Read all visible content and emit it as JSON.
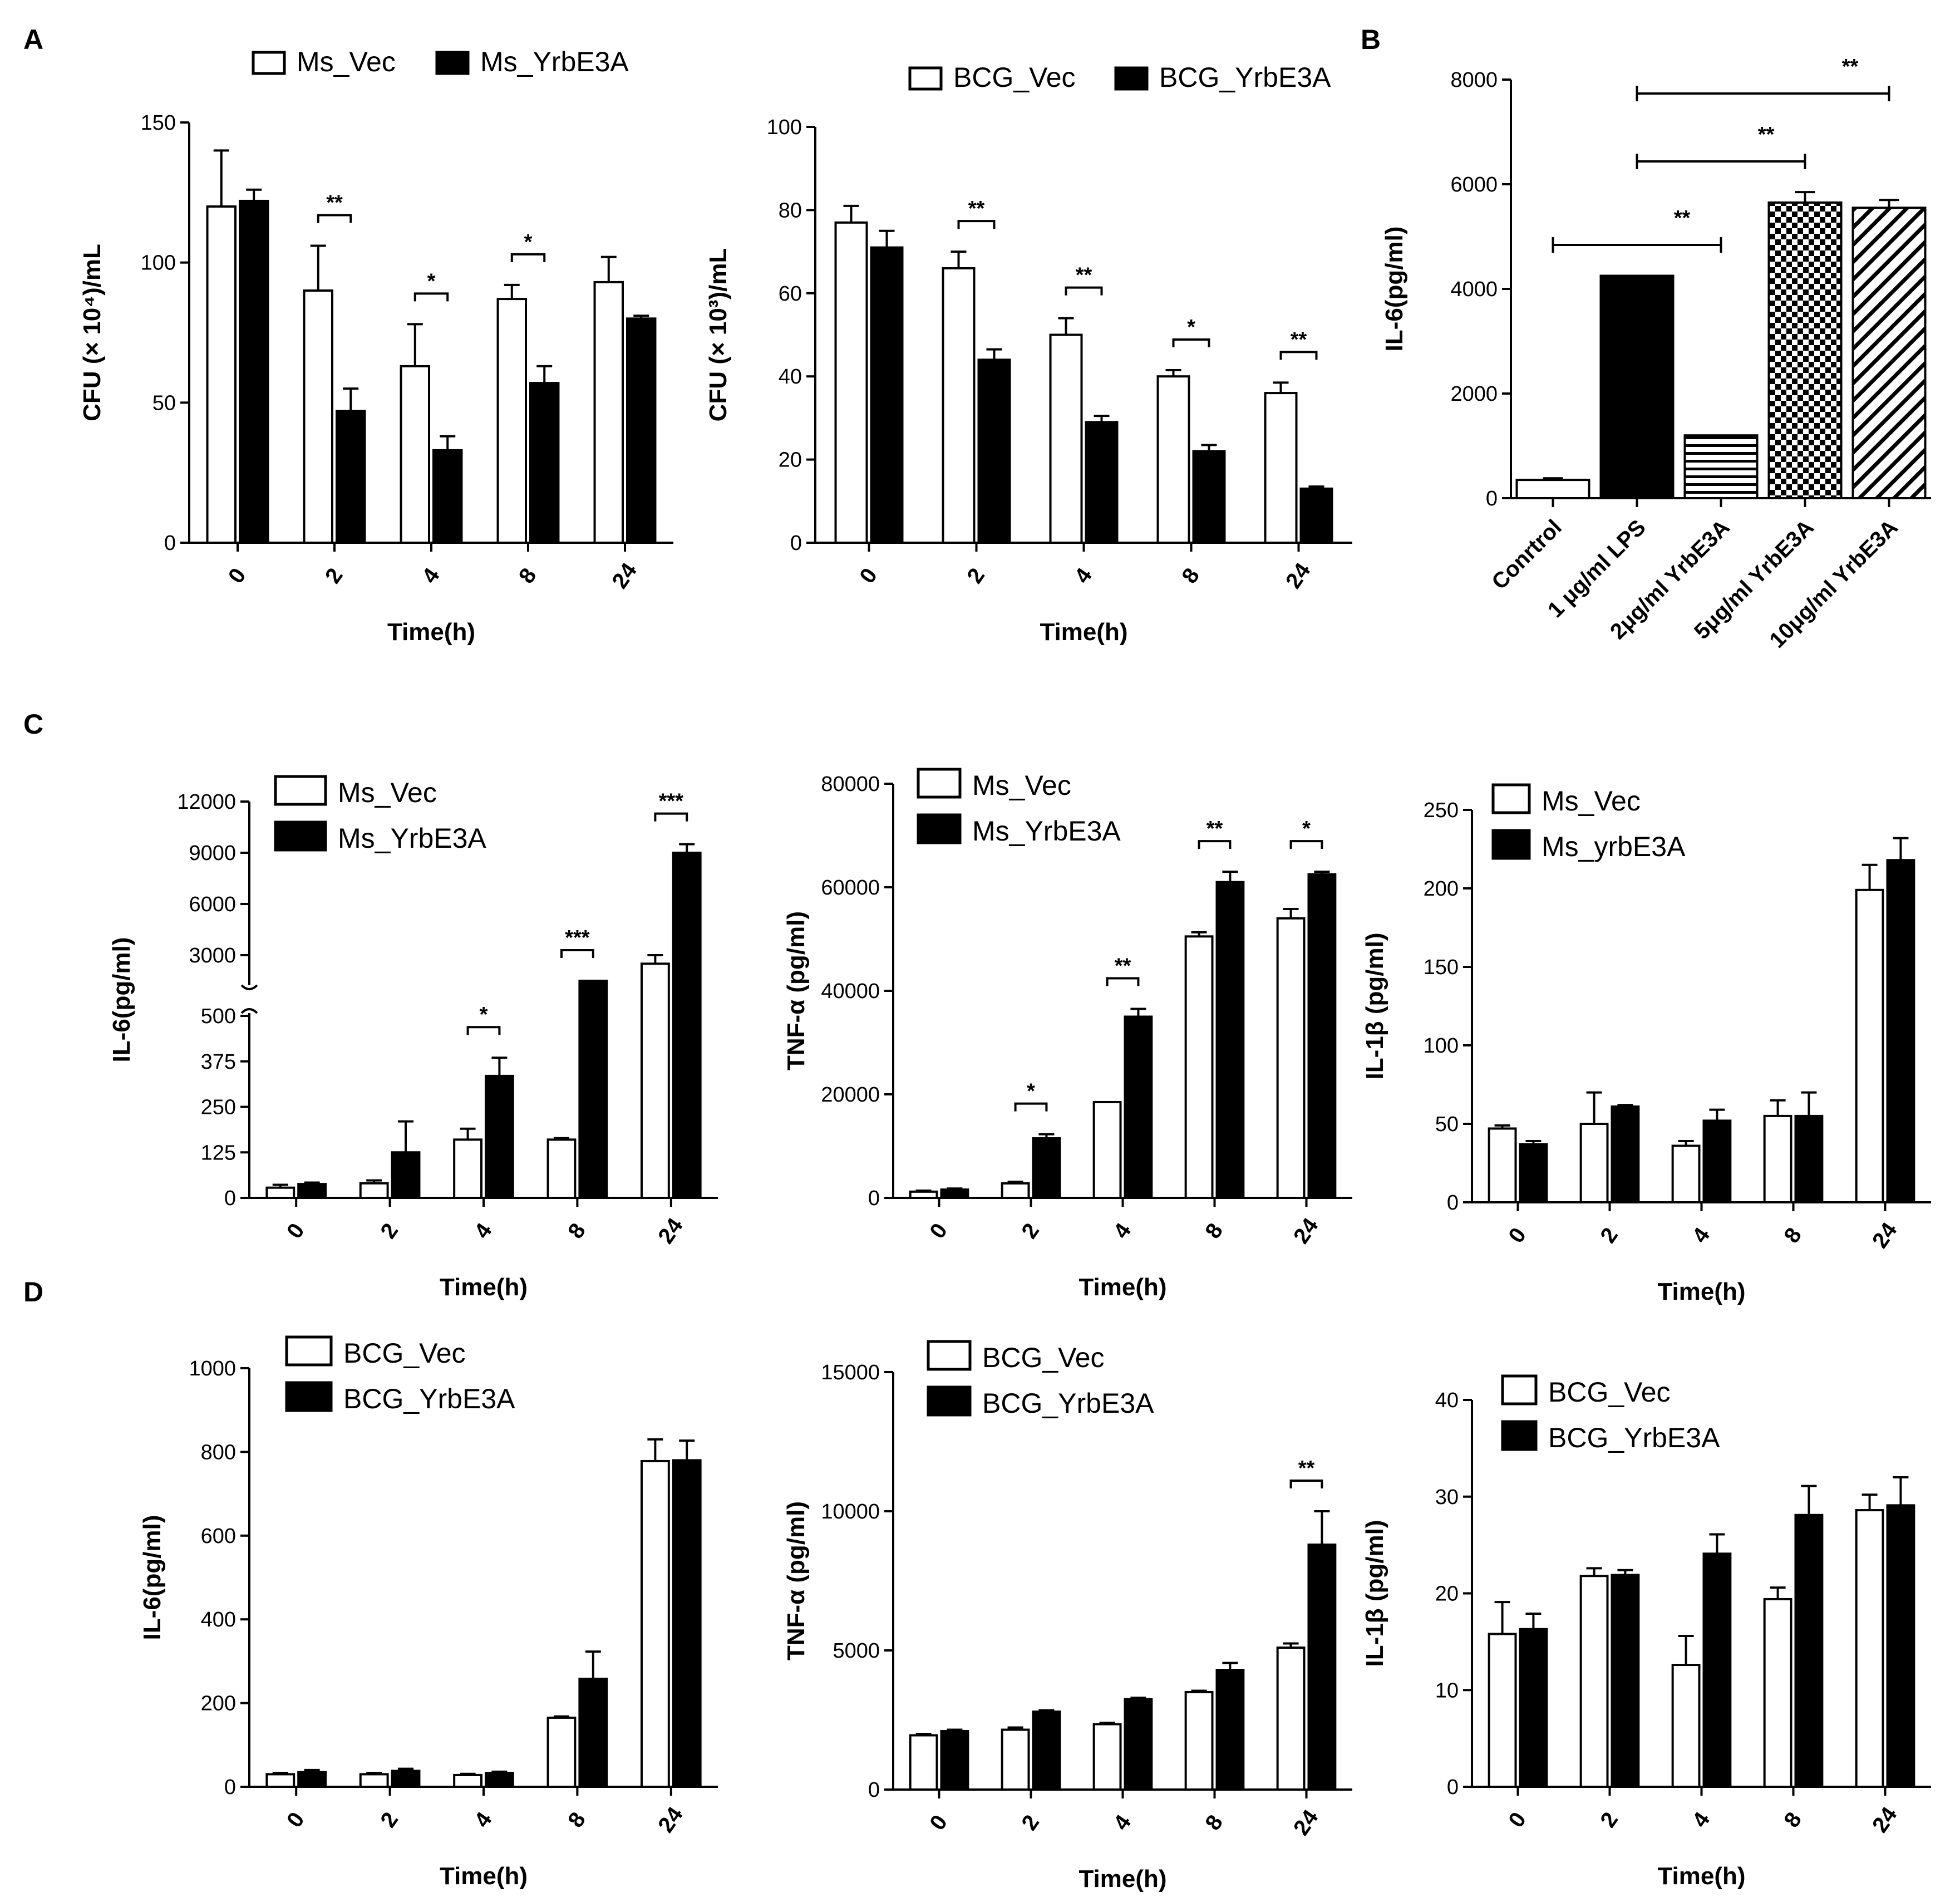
{
  "chart_data": [
    {
      "id": "A1",
      "panel_label": "A",
      "type": "bar",
      "title": "",
      "xlabel": "Time(h)",
      "ylabel": "CFU (× 10⁴)/mL",
      "categories": [
        "0",
        "2",
        "4",
        "8",
        "24"
      ],
      "ylim": [
        0,
        150
      ],
      "yticks": [
        0,
        50,
        100,
        150
      ],
      "legend_position": "top",
      "series": [
        {
          "name": "Ms_Vec",
          "fill": "open",
          "values": [
            120,
            90,
            63,
            87,
            93
          ],
          "errors": [
            20,
            16,
            15,
            5,
            9
          ]
        },
        {
          "name": "Ms_YrbE3A",
          "fill": "solid",
          "values": [
            122,
            47,
            33,
            57,
            80
          ],
          "errors": [
            4,
            8,
            5,
            6,
            1
          ]
        }
      ],
      "annotations": [
        {
          "category": "2",
          "label": "**"
        },
        {
          "category": "4",
          "label": "*"
        },
        {
          "category": "8",
          "label": "*"
        }
      ]
    },
    {
      "id": "A2",
      "type": "bar",
      "title": "",
      "xlabel": "Time(h)",
      "ylabel": "CFU (× 10³)/mL",
      "categories": [
        "0",
        "2",
        "4",
        "8",
        "24"
      ],
      "ylim": [
        0,
        100
      ],
      "yticks": [
        0,
        20,
        40,
        60,
        80,
        100
      ],
      "legend_position": "top",
      "series": [
        {
          "name": "BCG_Vec",
          "fill": "open",
          "values": [
            77,
            66,
            50,
            40,
            36
          ],
          "errors": [
            4,
            4,
            4,
            1.5,
            2.5
          ]
        },
        {
          "name": "BCG_YrbE3A",
          "fill": "solid",
          "values": [
            71,
            44,
            29,
            22,
            13
          ],
          "errors": [
            4,
            2.5,
            1.5,
            1.5,
            0.5
          ]
        }
      ],
      "annotations": [
        {
          "category": "2",
          "label": "**"
        },
        {
          "category": "4",
          "label": "**"
        },
        {
          "category": "8",
          "label": "*"
        },
        {
          "category": "24",
          "label": "**"
        }
      ]
    },
    {
      "id": "B",
      "panel_label": "B",
      "type": "bar",
      "title": "",
      "xlabel": "",
      "ylabel": "IL-6(pg/ml)",
      "categories": [
        "Conrtrol",
        "1 μg/ml LPS",
        "2μg/ml YrbE3A",
        "5μg/ml YrbE3A",
        "10μg/ml YrbE3A"
      ],
      "ylim": [
        0,
        8000
      ],
      "yticks": [
        0,
        2000,
        4000,
        6000,
        8000
      ],
      "values": [
        350,
        4250,
        1200,
        5650,
        5550
      ],
      "errors": [
        30,
        0,
        0,
        200,
        150
      ],
      "patterns": [
        "open",
        "solid",
        "horizontal-lines",
        "checker",
        "diagonal-lines"
      ],
      "annotations": [
        {
          "from": "Conrtrol",
          "to": "2μg/ml YrbE3A",
          "label": "**"
        },
        {
          "from": "1 μg/ml LPS",
          "to": "5μg/ml YrbE3A",
          "label": "**"
        },
        {
          "from": "1 μg/ml LPS",
          "to": "10μg/ml YrbE3A",
          "label": "**"
        }
      ]
    },
    {
      "id": "C1",
      "panel_label": "C",
      "type": "bar",
      "title": "",
      "xlabel": "Time(h)",
      "ylabel": "IL-6(pg/ml)",
      "categories": [
        "0",
        "2",
        "4",
        "8",
        "24"
      ],
      "axis_break": {
        "lower_range": [
          0,
          500
        ],
        "upper_range": [
          1500,
          12000
        ]
      },
      "yticks_lower": [
        0,
        125,
        250,
        375,
        500
      ],
      "yticks_upper": [
        3000,
        6000,
        9000,
        12000
      ],
      "legend_position": "top-left",
      "series": [
        {
          "name": "Ms_Vec",
          "fill": "open",
          "values": [
            28,
            40,
            160,
            160,
            2500
          ],
          "errors": [
            8,
            8,
            30,
            4,
            500
          ]
        },
        {
          "name": "Ms_YrbE3A",
          "fill": "solid",
          "values": [
            38,
            125,
            335,
            1500,
            9000
          ],
          "errors": [
            4,
            85,
            50,
            0,
            500
          ]
        }
      ],
      "annotations": [
        {
          "category": "4",
          "label": "*"
        },
        {
          "category": "8",
          "label": "***"
        },
        {
          "category": "24",
          "label": "***"
        }
      ]
    },
    {
      "id": "C2",
      "type": "bar",
      "title": "",
      "xlabel": "Time(h)",
      "ylabel": "TNF-α  (pg/ml)",
      "categories": [
        "0",
        "2",
        "4",
        "8",
        "24"
      ],
      "ylim": [
        0,
        80000
      ],
      "yticks": [
        0,
        20000,
        40000,
        60000,
        80000
      ],
      "legend_position": "top-left",
      "series": [
        {
          "name": "Ms_Vec",
          "fill": "open",
          "values": [
            1200,
            2800,
            18500,
            50500,
            54000
          ],
          "errors": [
            200,
            300,
            0,
            800,
            1800
          ]
        },
        {
          "name": "Ms_YrbE3A",
          "fill": "solid",
          "values": [
            1600,
            11500,
            35000,
            61000,
            62500
          ],
          "errors": [
            200,
            800,
            1500,
            2000,
            500
          ]
        }
      ],
      "annotations": [
        {
          "category": "2",
          "label": "*"
        },
        {
          "category": "4",
          "label": "**"
        },
        {
          "category": "8",
          "label": "**"
        },
        {
          "category": "24",
          "label": "*"
        }
      ]
    },
    {
      "id": "C3",
      "type": "bar",
      "title": "",
      "xlabel": "Time(h)",
      "ylabel": "IL-1β  (pg/ml)",
      "categories": [
        "0",
        "2",
        "4",
        "8",
        "24"
      ],
      "ylim": [
        0,
        250
      ],
      "yticks": [
        0,
        50,
        100,
        150,
        200,
        250
      ],
      "legend_position": "top-left",
      "series": [
        {
          "name": "Ms_Vec",
          "fill": "open",
          "values": [
            47,
            50,
            36,
            55,
            199
          ],
          "errors": [
            2,
            20,
            3,
            10,
            16
          ]
        },
        {
          "name": "Ms_yrbE3A",
          "fill": "solid",
          "values": [
            37,
            61,
            52,
            55,
            218
          ],
          "errors": [
            2,
            1,
            7,
            15,
            14
          ]
        }
      ],
      "annotations": []
    },
    {
      "id": "D1",
      "panel_label": "D",
      "type": "bar",
      "title": "",
      "xlabel": "Time(h)",
      "ylabel": "IL-6(pg/ml)",
      "categories": [
        "0",
        "2",
        "4",
        "8",
        "24"
      ],
      "ylim": [
        0,
        1000
      ],
      "yticks": [
        0,
        200,
        400,
        600,
        800,
        1000
      ],
      "legend_position": "top-left",
      "series": [
        {
          "name": "BCG_Vec",
          "fill": "open",
          "values": [
            30,
            30,
            28,
            165,
            778
          ],
          "errors": [
            3,
            3,
            3,
            3,
            52
          ]
        },
        {
          "name": "BCG_YrbE3A",
          "fill": "solid",
          "values": [
            35,
            38,
            33,
            258,
            780
          ],
          "errors": [
            5,
            5,
            3,
            65,
            47
          ]
        }
      ],
      "annotations": []
    },
    {
      "id": "D2",
      "type": "bar",
      "title": "",
      "xlabel": "Time(h)",
      "ylabel": "TNF-α  (pg/ml)",
      "categories": [
        "0",
        "2",
        "4",
        "8",
        "24"
      ],
      "ylim": [
        0,
        15000
      ],
      "yticks": [
        0,
        5000,
        10000,
        15000
      ],
      "legend_position": "top-left",
      "series": [
        {
          "name": "BCG_Vec",
          "fill": "open",
          "values": [
            1950,
            2150,
            2350,
            3500,
            5100
          ],
          "errors": [
            50,
            80,
            50,
            50,
            150
          ]
        },
        {
          "name": "BCG_YrbE3A",
          "fill": "solid",
          "values": [
            2100,
            2800,
            3250,
            4300,
            8800
          ],
          "errors": [
            50,
            50,
            50,
            250,
            1200
          ]
        }
      ],
      "annotations": [
        {
          "category": "24",
          "label": "**"
        }
      ]
    },
    {
      "id": "D3",
      "type": "bar",
      "title": "",
      "xlabel": "Time(h)",
      "ylabel": "IL-1β  (pg/ml)",
      "categories": [
        "0",
        "2",
        "4",
        "8",
        "24"
      ],
      "ylim": [
        0,
        40
      ],
      "yticks": [
        0,
        10,
        20,
        30,
        40
      ],
      "legend_position": "top-left",
      "series": [
        {
          "name": "BCG_Vec",
          "fill": "open",
          "values": [
            15.8,
            21.8,
            12.6,
            19.4,
            28.6
          ],
          "errors": [
            3.3,
            0.8,
            3,
            1.2,
            1.6
          ]
        },
        {
          "name": "BCG_YrbE3A",
          "fill": "solid",
          "values": [
            16.3,
            21.9,
            24.1,
            28.1,
            29.1
          ],
          "errors": [
            1.6,
            0.5,
            2,
            3,
            2.9
          ]
        }
      ],
      "annotations": []
    }
  ]
}
